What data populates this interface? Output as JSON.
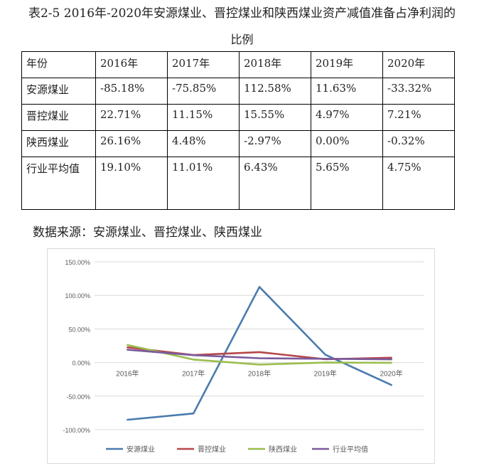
{
  "title_line1": "表2-5 2016年-2020年安源煤业、晋控煤业和陕西煤业资产减值准备占净利润的",
  "title_line2": "比例",
  "table": {
    "header": [
      "年份",
      "2016年",
      "2017年",
      "2018年",
      "2019年",
      "2020年"
    ],
    "rows": [
      [
        "安源煤业",
        "-85.18%",
        "-75.85%",
        "112.58%",
        "11.63%",
        "-33.32%"
      ],
      [
        "晋控煤业",
        "22.71%",
        "11.15%",
        "15.55%",
        "4.97%",
        "7.21%"
      ],
      [
        "陕西煤业",
        "26.16%",
        "4.48%",
        "-2.97%",
        "0.00%",
        "-0.32%"
      ],
      [
        "行业平均值",
        "19.10%",
        "11.01%",
        "6.43%",
        "5.65%",
        "4.75%"
      ]
    ]
  },
  "source": "数据来源：安源煤业、晋控煤业、陕西煤业",
  "chart_data": {
    "type": "line",
    "categories": [
      "2016年",
      "2017年",
      "2018年",
      "2019年",
      "2020年"
    ],
    "ylim": [
      -100,
      150
    ],
    "yticks": [
      150,
      100,
      50,
      0,
      -50,
      -100
    ],
    "ytick_labels": [
      "150.00%",
      "100.00%",
      "50.00%",
      "0.00%",
      "-50.00%",
      "-100.00%"
    ],
    "grid": true,
    "legend": "bottom",
    "series": [
      {
        "name": "安源煤业",
        "color": "#4a7bad",
        "values": [
          -85.18,
          -75.85,
          112.58,
          11.63,
          -33.32
        ]
      },
      {
        "name": "晋控煤业",
        "color": "#b5474a",
        "values": [
          22.71,
          11.15,
          15.55,
          4.97,
          7.21
        ]
      },
      {
        "name": "陕西煤业",
        "color": "#9bbd4e",
        "values": [
          26.16,
          4.48,
          -2.97,
          0.0,
          -0.32
        ]
      },
      {
        "name": "行业平均值",
        "color": "#7a5a9c",
        "values": [
          19.1,
          11.01,
          6.43,
          5.65,
          4.75
        ]
      }
    ]
  }
}
